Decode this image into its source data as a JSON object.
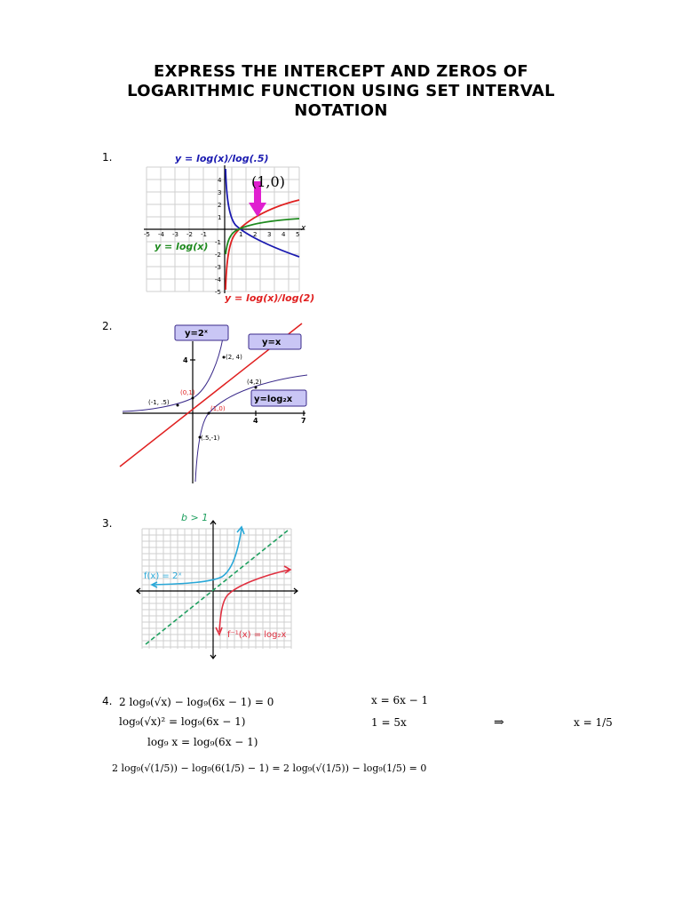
{
  "title": {
    "line1": "EXPRESS THE INTERCEPT AND ZEROS OF",
    "line2": "LOGARITHMIC FUNCTION USING SET INTERVAL",
    "line3": "NOTATION"
  },
  "problems": [
    {
      "number": "1."
    },
    {
      "number": "2."
    },
    {
      "number": "3."
    },
    {
      "number": "4."
    }
  ],
  "graph1": {
    "label_top": "y = log(x)/log(.5)",
    "label_point": "(1,0)",
    "label_green": "y = log(x)",
    "label_bottom": "y = log(x)/log(2)",
    "axis_x": "x",
    "colors": {
      "blue": "#1a1ab0",
      "green": "#1f8a1f",
      "red": "#e02020",
      "arrow": "#e020d0"
    }
  },
  "graph2": {
    "box_exp": "y=2ˣ",
    "box_line": "y=x",
    "box_log": "y=log₂x",
    "p1": "(2, 4)",
    "p2": "(0,1)",
    "p3": "(-1, .5)",
    "p4": "(4,2)",
    "p5": "(1,0)",
    "p6": "(.5,-1)",
    "tick4y": "4",
    "tick4x": "4",
    "tick7x": "7",
    "colors": {
      "box": "#c9c6f5",
      "line": "#e02020"
    }
  },
  "graph3": {
    "label_b": "b > 1",
    "label_f": "f(x) = 2ˣ",
    "label_finv": "f⁻¹(x) = log₂x",
    "colors": {
      "blue": "#29a8d8",
      "red": "#e03040",
      "green": "#20a060"
    }
  },
  "problem4": {
    "line1": "2 log₉(√x) − log₉(6x − 1) = 0",
    "line2": "log₉(√x)² = log₉(6x − 1)",
    "line3": "log₉ x = log₉(6x − 1)",
    "line4": "2 log₉(√(1/5)) − log₉(6(1/5) − 1) = 2 log₉(√(1/5)) − log₉(1/5) = 0",
    "right1": "x = 6x − 1",
    "right2": "1 = 5x",
    "implies": "⇒",
    "result": "x = 1/5"
  }
}
